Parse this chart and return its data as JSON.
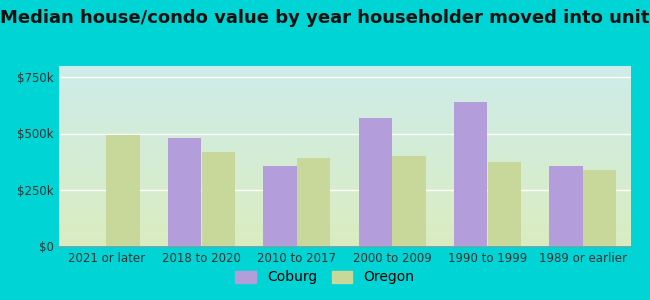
{
  "categories": [
    "2021 or later",
    "2018 to 2020",
    "2010 to 2017",
    "2000 to 2009",
    "1990 to 1999",
    "1989 or earlier"
  ],
  "coburg": [
    0,
    480000,
    355000,
    570000,
    640000,
    355000
  ],
  "oregon": [
    495000,
    420000,
    390000,
    400000,
    375000,
    340000
  ],
  "coburg_color": "#b39ddb",
  "oregon_color": "#c8d89a",
  "title": "Median house/condo value by year householder moved into unit",
  "ylabel_ticks": [
    0,
    250000,
    500000,
    750000
  ],
  "ylabel_labels": [
    "$0",
    "$250k",
    "$500k",
    "$750k"
  ],
  "ylim": [
    0,
    800000
  ],
  "background_outer": "#00d4d4",
  "bg_top_color": "#ceecea",
  "bg_bottom_color": "#daedc0",
  "bar_width": 0.35,
  "legend_coburg": "Coburg",
  "legend_oregon": "Oregon",
  "title_fontsize": 13,
  "tick_fontsize": 8.5,
  "legend_fontsize": 10
}
